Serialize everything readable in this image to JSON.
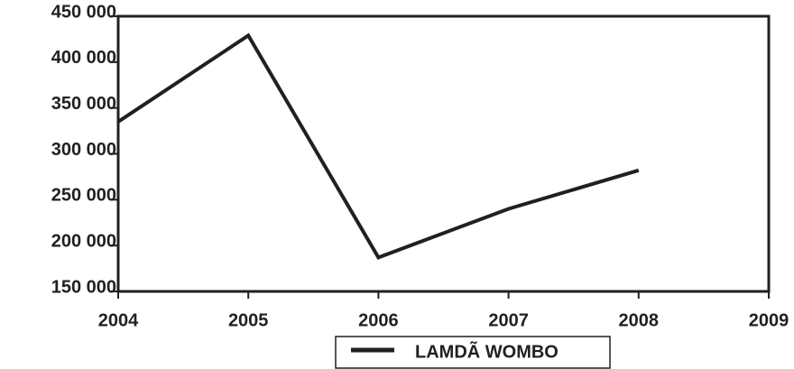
{
  "chart_data": {
    "type": "line",
    "x": [
      2004,
      2005,
      2006,
      2007,
      2008
    ],
    "series": [
      {
        "name": "LAMDÃ WOMBO",
        "color": "#231f20",
        "values": [
          335000,
          429000,
          187000,
          240000,
          282000
        ]
      }
    ],
    "xlim": [
      2004,
      2009
    ],
    "xticks": [
      2004,
      2005,
      2006,
      2007,
      2008,
      2009
    ],
    "ylim": [
      150000,
      450000
    ],
    "yticks": [
      {
        "value": 150000,
        "label": "150 000"
      },
      {
        "value": 200000,
        "label": "200 000"
      },
      {
        "value": 250000,
        "label": "250 000"
      },
      {
        "value": 300000,
        "label": "300 000"
      },
      {
        "value": 350000,
        "label": "350 000"
      },
      {
        "value": 400000,
        "label": "400 000"
      },
      {
        "value": 450000,
        "label": "450 000"
      }
    ],
    "legend": "bottom"
  }
}
